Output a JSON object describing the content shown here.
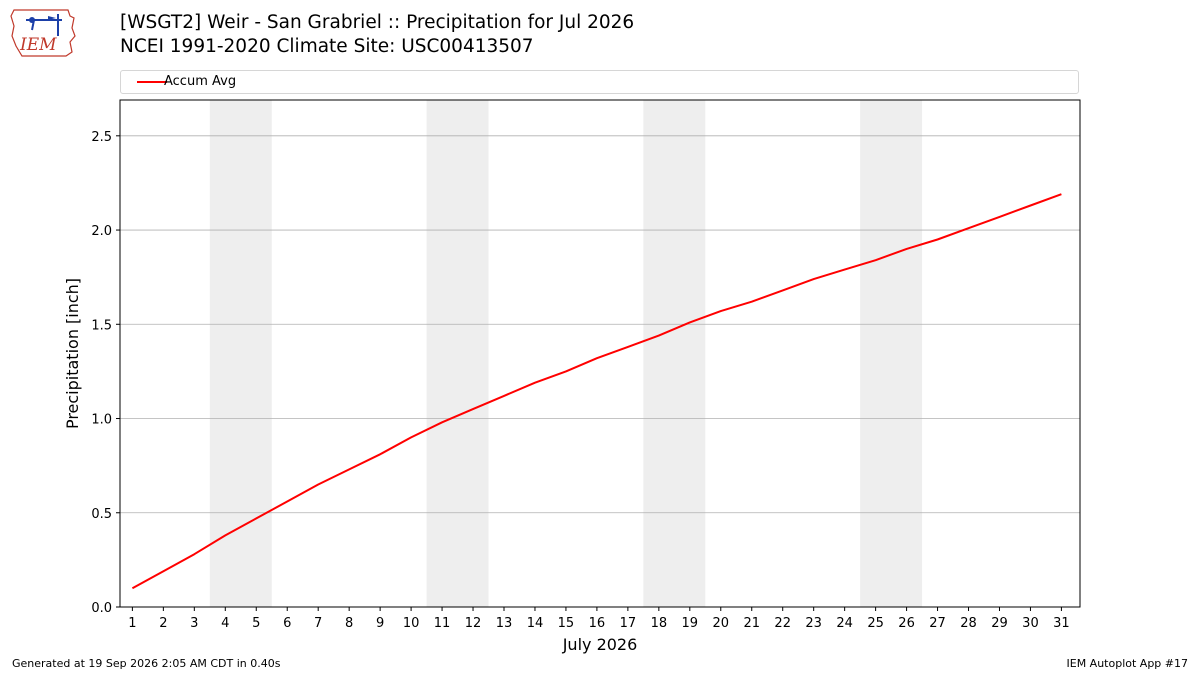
{
  "header": {
    "logo_text": "IEM",
    "title_line1": "[WSGT2] Weir - San Grabriel :: Precipitation for Jul 2026",
    "title_line2": "NCEI 1991-2020 Climate Site: USC00413507"
  },
  "footer": {
    "left": "Generated at 19 Sep 2026 2:05 AM CDT in 0.40s",
    "right": "IEM Autoplot App #17"
  },
  "chart_data": {
    "type": "line",
    "xlabel": "July 2026",
    "ylabel": "Precipitation [inch]",
    "x": [
      1,
      2,
      3,
      4,
      5,
      6,
      7,
      8,
      9,
      10,
      11,
      12,
      13,
      14,
      15,
      16,
      17,
      18,
      19,
      20,
      21,
      22,
      23,
      24,
      25,
      26,
      27,
      28,
      29,
      30,
      31
    ],
    "xlim": [
      0.6,
      31.6
    ],
    "ylim": [
      0,
      2.69
    ],
    "yticks": [
      0.0,
      0.5,
      1.0,
      1.5,
      2.0,
      2.5
    ],
    "ytick_labels": [
      "0.0",
      "0.5",
      "1.0",
      "1.5",
      "2.0",
      "2.5"
    ],
    "grid": "horizontal",
    "weekend_shading": [
      [
        3.5,
        5.5
      ],
      [
        10.5,
        12.5
      ],
      [
        17.5,
        19.5
      ],
      [
        24.5,
        26.5
      ]
    ],
    "shading_color": "#eeeeee",
    "legend_position": "top",
    "series": [
      {
        "name": "Accum Avg",
        "color": "#ff0000",
        "values": [
          0.1,
          0.19,
          0.28,
          0.38,
          0.47,
          0.56,
          0.65,
          0.73,
          0.81,
          0.9,
          0.98,
          1.05,
          1.12,
          1.19,
          1.25,
          1.32,
          1.38,
          1.44,
          1.51,
          1.57,
          1.62,
          1.68,
          1.74,
          1.79,
          1.84,
          1.9,
          1.95,
          2.01,
          2.07,
          2.13,
          2.19
        ]
      }
    ]
  }
}
